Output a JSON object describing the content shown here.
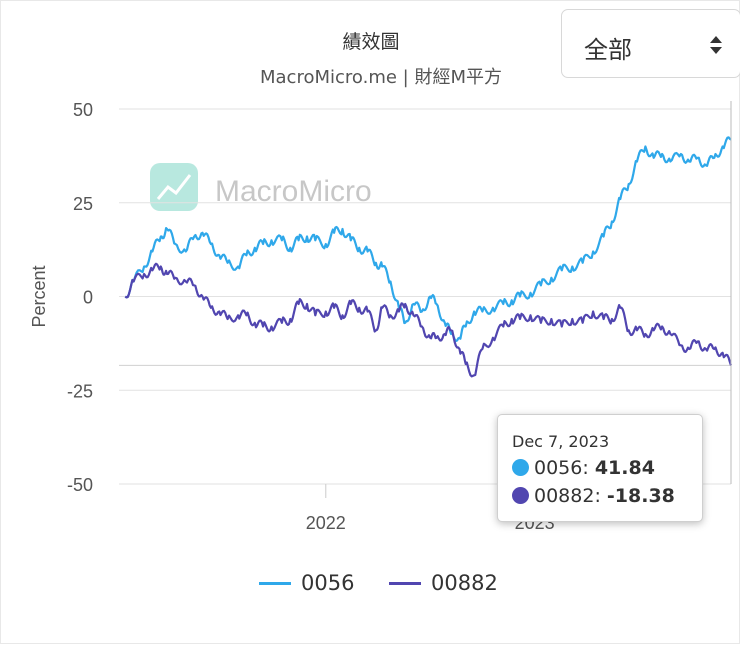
{
  "header": {
    "title": "績效圖",
    "subtitle": "MacroMicro.me | 財經M平方",
    "watermark": "MacroMicro"
  },
  "range_select": {
    "value": "全部",
    "icon": "sort-arrows-icon"
  },
  "tooltip": {
    "date": "Dec 7, 2023",
    "rows": [
      {
        "name": "0056",
        "value": "41.84",
        "color": "#2fa8ea"
      },
      {
        "name": "00882",
        "value": "-18.38",
        "color": "#5146b0"
      }
    ]
  },
  "legend": [
    {
      "name": "0056",
      "color": "#2fa8ea"
    },
    {
      "name": "00882",
      "color": "#5146b0"
    }
  ],
  "chart_data": {
    "type": "line",
    "title": "績效圖",
    "ylabel": "Percent",
    "xlabel": "",
    "ylim": [
      -50,
      50
    ],
    "yticks": [
      50,
      25,
      0,
      -25,
      -50
    ],
    "xticks": [
      {
        "label": "2022",
        "t": 2022.0
      },
      {
        "label": "2023",
        "t": 2023.0
      }
    ],
    "x_range": [
      2021.01,
      2023.94
    ],
    "grid": true,
    "legend_position": "bottom",
    "series": [
      {
        "name": "0056",
        "color": "#2fa8ea",
        "t": [
          2021.04,
          2021.08,
          2021.13,
          2021.17,
          2021.21,
          2021.24,
          2021.28,
          2021.33,
          2021.37,
          2021.41,
          2021.45,
          2021.49,
          2021.53,
          2021.58,
          2021.62,
          2021.66,
          2021.7,
          2021.74,
          2021.79,
          2021.83,
          2021.87,
          2021.91,
          2021.95,
          2022.0,
          2022.04,
          2022.08,
          2022.12,
          2022.16,
          2022.2,
          2022.24,
          2022.27,
          2022.31,
          2022.35,
          2022.38,
          2022.42,
          2022.46,
          2022.5,
          2022.53,
          2022.57,
          2022.6,
          2022.64,
          2022.67,
          2022.71,
          2022.75,
          2022.8,
          2022.85,
          2022.89,
          2022.93,
          2022.98,
          2023.03,
          2023.08,
          2023.13,
          2023.18,
          2023.23,
          2023.28,
          2023.33,
          2023.37,
          2023.41,
          2023.45,
          2023.49,
          2023.53,
          2023.57,
          2023.61,
          2023.65,
          2023.7,
          2023.74,
          2023.78,
          2023.82,
          2023.86,
          2023.9,
          2023.94
        ],
        "values": [
          0,
          4,
          8,
          12,
          16,
          18,
          14,
          12,
          16,
          17,
          14,
          11,
          9,
          8,
          11,
          13,
          14,
          15,
          15,
          13,
          15,
          16,
          15,
          14,
          17,
          18,
          15,
          13,
          12,
          9,
          8,
          4,
          -3,
          -7,
          -2,
          -4,
          0,
          -2,
          -7,
          -10,
          -11,
          -8,
          -4,
          -4,
          -3,
          -2,
          -1,
          0,
          1,
          3,
          5,
          7,
          8,
          9,
          12,
          16,
          20,
          26,
          30,
          36,
          40,
          37,
          38,
          36,
          38,
          36,
          37,
          35,
          37,
          40,
          41.84
        ]
      },
      {
        "name": "00882",
        "color": "#5146b0",
        "t": [
          2021.04,
          2021.08,
          2021.13,
          2021.17,
          2021.21,
          2021.24,
          2021.28,
          2021.33,
          2021.37,
          2021.41,
          2021.45,
          2021.49,
          2021.53,
          2021.58,
          2021.62,
          2021.66,
          2021.7,
          2021.74,
          2021.79,
          2021.83,
          2021.87,
          2021.91,
          2021.95,
          2022.0,
          2022.04,
          2022.08,
          2022.12,
          2022.16,
          2022.2,
          2022.24,
          2022.27,
          2022.31,
          2022.35,
          2022.38,
          2022.42,
          2022.46,
          2022.5,
          2022.53,
          2022.57,
          2022.6,
          2022.64,
          2022.67,
          2022.71,
          2022.75,
          2022.8,
          2022.85,
          2022.89,
          2022.93,
          2022.98,
          2023.03,
          2023.08,
          2023.13,
          2023.18,
          2023.23,
          2023.28,
          2023.33,
          2023.37,
          2023.41,
          2023.45,
          2023.49,
          2023.53,
          2023.57,
          2023.61,
          2023.65,
          2023.7,
          2023.74,
          2023.78,
          2023.82,
          2023.86,
          2023.9,
          2023.94
        ],
        "values": [
          0,
          4,
          6,
          7,
          8,
          6,
          5,
          4,
          3,
          0,
          -3,
          -4,
          -6,
          -5,
          -5,
          -7,
          -8,
          -8,
          -7,
          -6,
          -2,
          -2,
          -5,
          -4,
          -3,
          -5,
          -2,
          -3,
          -4,
          -9,
          -3,
          -5,
          -4,
          -2,
          -5,
          -8,
          -11,
          -11,
          -10,
          -9,
          -14,
          -18,
          -21,
          -14,
          -11,
          -8,
          -6,
          -6,
          -5,
          -7,
          -6,
          -8,
          -6,
          -7,
          -4,
          -6,
          -6,
          -3,
          -9,
          -9,
          -10,
          -9,
          -8,
          -10,
          -13,
          -14,
          -12,
          -14,
          -14,
          -15,
          -18.38
        ]
      }
    ],
    "hover_date": "Dec 7, 2023"
  }
}
